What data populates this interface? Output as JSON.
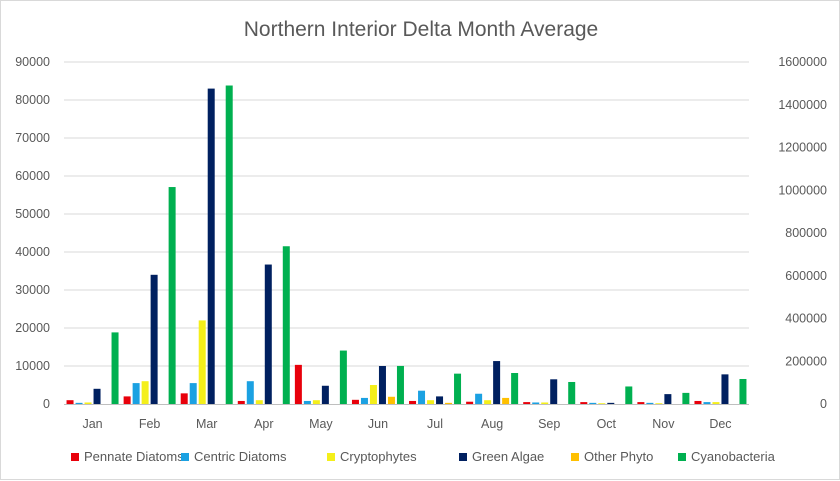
{
  "chart_data": {
    "type": "bar",
    "title": "Northern Interior Delta Month Average",
    "xlabel": "",
    "ylabel": "",
    "categories": [
      "Jan",
      "Feb",
      "Mar",
      "Apr",
      "May",
      "Jun",
      "Jul",
      "Aug",
      "Sep",
      "Oct",
      "Nov",
      "Dec"
    ],
    "ylim": [
      0,
      90000
    ],
    "y_ticks": [
      "0",
      "10000",
      "20000",
      "30000",
      "40000",
      "50000",
      "60000",
      "70000",
      "80000",
      "90000"
    ],
    "y2lim": [
      0,
      1600000
    ],
    "y2_ticks": [
      "0",
      "200000",
      "400000",
      "600000",
      "800000",
      "1000000",
      "1200000",
      "1400000",
      "1600000"
    ],
    "grid": true,
    "legend_position": "bottom",
    "series": [
      {
        "name": "Pennate Diatoms",
        "color": "#e8000b",
        "axis": "left",
        "values": [
          1000,
          2000,
          2800,
          800,
          10300,
          1100,
          800,
          600,
          500,
          500,
          500,
          800
        ]
      },
      {
        "name": "Centric Diatoms",
        "color": "#1ba1e2",
        "axis": "left",
        "values": [
          300,
          5500,
          5500,
          6000,
          800,
          1600,
          3500,
          2700,
          400,
          300,
          300,
          500
        ]
      },
      {
        "name": "Cryptophytes",
        "color": "#f4ef1a",
        "axis": "left",
        "values": [
          400,
          6000,
          22000,
          1000,
          1000,
          5000,
          1000,
          1000,
          400,
          200,
          200,
          500
        ]
      },
      {
        "name": "Green Algae",
        "color": "#002060",
        "axis": "left",
        "values": [
          4000,
          34000,
          83000,
          36700,
          4800,
          10000,
          2000,
          11300,
          6500,
          300,
          2600,
          7800
        ]
      },
      {
        "name": "Other Phyto",
        "color": "#ffc000",
        "axis": "left",
        "values": [
          0,
          0,
          0,
          0,
          0,
          1900,
          300,
          1600,
          0,
          0,
          0,
          0
        ]
      },
      {
        "name": "Cyanobacteria",
        "color": "#00b050",
        "axis": "right",
        "values": [
          335000,
          1015000,
          1490000,
          738000,
          250000,
          178000,
          142000,
          145000,
          103000,
          82000,
          52000,
          117000
        ]
      }
    ]
  }
}
